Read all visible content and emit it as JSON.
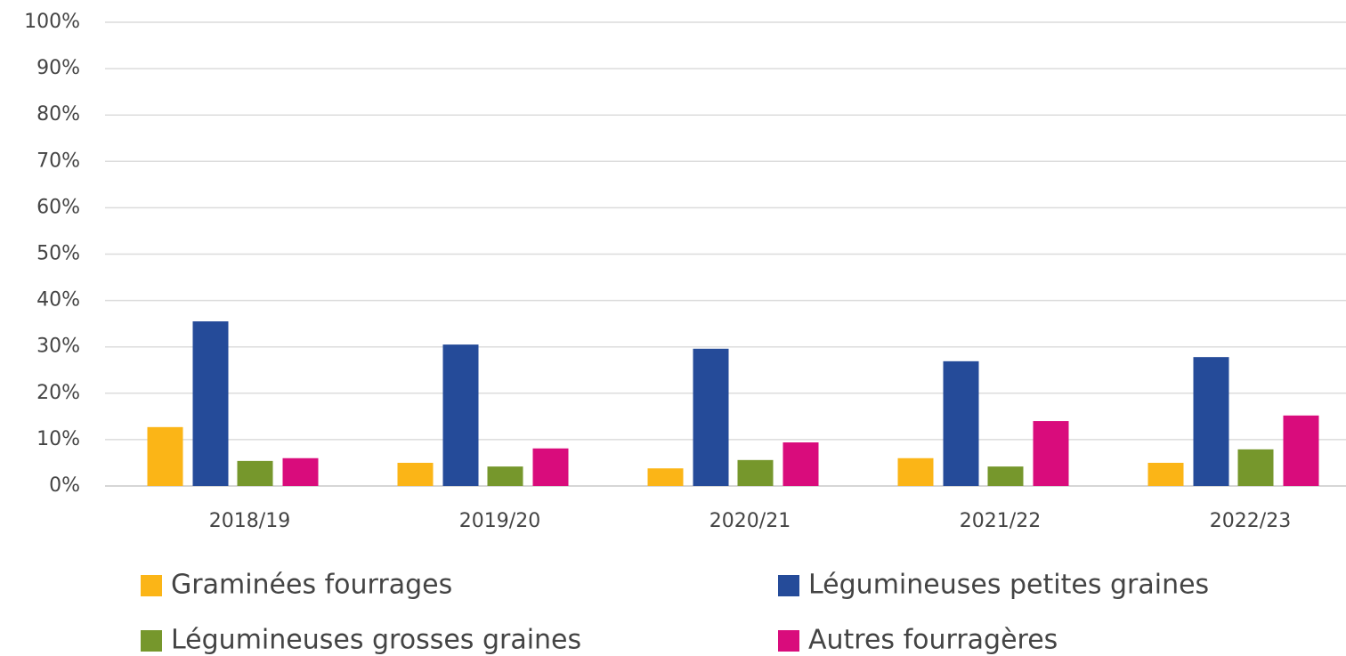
{
  "chart_data": {
    "type": "bar",
    "categories": [
      "2018/19",
      "2019/20",
      "2020/21",
      "2021/22",
      "2022/23"
    ],
    "series": [
      {
        "name": "Graminées fourrages",
        "color": "#fbb517",
        "values": [
          12.7,
          5.0,
          3.8,
          6.0,
          5.0
        ]
      },
      {
        "name": "Légumineuses petites graines",
        "color": "#254b99",
        "values": [
          35.5,
          30.5,
          29.6,
          26.9,
          27.8
        ]
      },
      {
        "name": "Légumineuses grosses graines",
        "color": "#76972c",
        "values": [
          5.4,
          4.2,
          5.6,
          4.2,
          7.9
        ]
      },
      {
        "name": "Autres fourragères",
        "color": "#d90c7c",
        "values": [
          6.0,
          8.1,
          9.4,
          14.0,
          15.2
        ]
      }
    ],
    "ylim": [
      0,
      100
    ],
    "yticks": [
      {
        "value": 0,
        "label": "0%"
      },
      {
        "value": 10,
        "label": "10%"
      },
      {
        "value": 20,
        "label": "20%"
      },
      {
        "value": 30,
        "label": "30%"
      },
      {
        "value": 40,
        "label": "40%"
      },
      {
        "value": 50,
        "label": "50%"
      },
      {
        "value": 60,
        "label": "60%"
      },
      {
        "value": 70,
        "label": "70%"
      },
      {
        "value": 80,
        "label": "80%"
      },
      {
        "value": 90,
        "label": "90%"
      },
      {
        "value": 100,
        "label": "100%"
      }
    ],
    "grid": true
  }
}
